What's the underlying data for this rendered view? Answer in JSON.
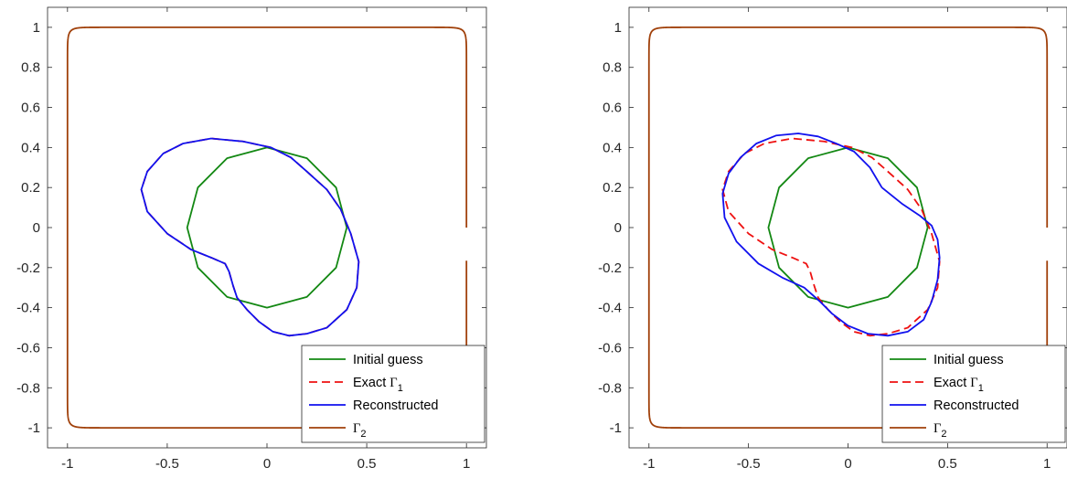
{
  "chart_data": [
    {
      "type": "line",
      "panel": "left",
      "xlim": [
        -1.1,
        1.1
      ],
      "ylim": [
        -1.1,
        1.1
      ],
      "x_ticks": [
        -1,
        -0.5,
        0,
        0.5,
        1
      ],
      "x_tick_labels": [
        "-1",
        "-0.5",
        "0",
        "0.5",
        "1"
      ],
      "y_ticks": [
        1,
        0.8,
        0.6,
        0.4,
        0.2,
        0,
        -0.2,
        -0.4,
        -0.6,
        -0.8,
        -1
      ],
      "y_tick_labels": [
        "1",
        "0.8",
        "0.6",
        "0.4",
        "0.2",
        "0",
        "-0.2",
        "-0.4",
        "-0.6",
        "-0.8",
        "-1"
      ],
      "grid": false,
      "legend_position": "bottom-right",
      "legend": [
        {
          "label": "Initial guess",
          "sub": ""
        },
        {
          "label": "Exact Γ",
          "sub": "1"
        },
        {
          "label": "Reconstructed",
          "sub": ""
        },
        {
          "label": "Γ",
          "sub": "2"
        }
      ],
      "series": [
        {
          "label_index": 0,
          "color": "#138813",
          "dash": "solid",
          "x": [
            0.4,
            0.3464,
            0.2,
            0,
            -0.2,
            -0.3464,
            -0.4,
            -0.3464,
            -0.2,
            0,
            0.2,
            0.3464,
            0.4
          ],
          "y": [
            0,
            0.2,
            0.3464,
            0.4,
            0.3464,
            0.2,
            0,
            -0.2,
            -0.3464,
            -0.4,
            -0.3464,
            -0.2,
            0
          ]
        },
        {
          "label_index": 1,
          "color": "#ee1111",
          "dash": "dashed",
          "x": [
            0.2,
            0.3,
            0.37,
            0.42,
            0.46,
            0.45,
            0.4,
            0.3,
            0.2,
            0.11,
            0.03,
            -0.04,
            -0.1,
            -0.15,
            -0.17,
            -0.19,
            -0.21,
            -0.28,
            -0.38,
            -0.5,
            -0.6,
            -0.63,
            -0.6,
            -0.52,
            -0.42,
            -0.28,
            -0.12,
            0.02,
            0.12,
            0.2
          ],
          "y": [
            0.28,
            0.19,
            0.09,
            -0.03,
            -0.17,
            -0.3,
            -0.41,
            -0.5,
            -0.53,
            -0.54,
            -0.52,
            -0.47,
            -0.41,
            -0.35,
            -0.29,
            -0.22,
            -0.18,
            -0.15,
            -0.11,
            -0.03,
            0.08,
            0.19,
            0.28,
            0.37,
            0.42,
            0.445,
            0.43,
            0.4,
            0.35,
            0.28
          ]
        },
        {
          "label_index": 2,
          "color": "#1111ee",
          "dash": "solid",
          "x": [
            0.2,
            0.3,
            0.37,
            0.42,
            0.46,
            0.45,
            0.4,
            0.3,
            0.2,
            0.11,
            0.03,
            -0.04,
            -0.1,
            -0.15,
            -0.17,
            -0.19,
            -0.21,
            -0.28,
            -0.38,
            -0.5,
            -0.6,
            -0.63,
            -0.6,
            -0.52,
            -0.42,
            -0.28,
            -0.12,
            0.02,
            0.12,
            0.2
          ],
          "y": [
            0.28,
            0.19,
            0.09,
            -0.03,
            -0.17,
            -0.3,
            -0.41,
            -0.5,
            -0.53,
            -0.54,
            -0.52,
            -0.47,
            -0.41,
            -0.35,
            -0.29,
            -0.22,
            -0.18,
            -0.15,
            -0.11,
            -0.03,
            0.08,
            0.19,
            0.28,
            0.37,
            0.42,
            0.445,
            0.43,
            0.4,
            0.35,
            0.28
          ]
        },
        {
          "label_index": 3,
          "color": "#a0400a",
          "dash": "solid",
          "superellipse": {
            "a": 1,
            "n": 40
          }
        }
      ]
    },
    {
      "type": "line",
      "panel": "right",
      "xlim": [
        -1.1,
        1.1
      ],
      "ylim": [
        -1.1,
        1.1
      ],
      "x_ticks": [
        -1,
        -0.5,
        0,
        0.5,
        1
      ],
      "x_tick_labels": [
        "-1",
        "-0.5",
        "0",
        "0.5",
        "1"
      ],
      "y_ticks": [
        1,
        0.8,
        0.6,
        0.4,
        0.2,
        0,
        -0.2,
        -0.4,
        -0.6,
        -0.8,
        -1
      ],
      "y_tick_labels": [
        "1",
        "0.8",
        "0.6",
        "0.4",
        "0.2",
        "0",
        "-0.2",
        "-0.4",
        "-0.6",
        "-0.8",
        "-1"
      ],
      "grid": false,
      "legend_position": "bottom-right",
      "legend": [
        {
          "label": "Initial guess",
          "sub": ""
        },
        {
          "label": "Exact Γ",
          "sub": "1"
        },
        {
          "label": "Reconstructed",
          "sub": ""
        },
        {
          "label": "Γ",
          "sub": "2"
        }
      ],
      "series": [
        {
          "label_index": 0,
          "color": "#138813",
          "dash": "solid",
          "x": [
            0.4,
            0.3464,
            0.2,
            0,
            -0.2,
            -0.3464,
            -0.4,
            -0.3464,
            -0.2,
            0,
            0.2,
            0.3464,
            0.4
          ],
          "y": [
            0,
            0.2,
            0.3464,
            0.4,
            0.3464,
            0.2,
            0,
            -0.2,
            -0.3464,
            -0.4,
            -0.3464,
            -0.2,
            0
          ]
        },
        {
          "label_index": 1,
          "color": "#ee1111",
          "dash": "dashed",
          "x": [
            0.2,
            0.3,
            0.37,
            0.42,
            0.46,
            0.45,
            0.4,
            0.3,
            0.2,
            0.11,
            0.03,
            -0.04,
            -0.1,
            -0.15,
            -0.17,
            -0.19,
            -0.21,
            -0.28,
            -0.38,
            -0.5,
            -0.6,
            -0.63,
            -0.6,
            -0.52,
            -0.42,
            -0.28,
            -0.12,
            0.02,
            0.12,
            0.2
          ],
          "y": [
            0.28,
            0.19,
            0.09,
            -0.03,
            -0.17,
            -0.3,
            -0.41,
            -0.5,
            -0.53,
            -0.54,
            -0.52,
            -0.47,
            -0.41,
            -0.35,
            -0.29,
            -0.22,
            -0.18,
            -0.15,
            -0.11,
            -0.03,
            0.08,
            0.19,
            0.28,
            0.37,
            0.42,
            0.445,
            0.43,
            0.4,
            0.35,
            0.28
          ]
        },
        {
          "label_index": 2,
          "color": "#1111ee",
          "dash": "solid",
          "x": [
            0.17,
            0.27,
            0.36,
            0.42,
            0.45,
            0.46,
            0.45,
            0.42,
            0.38,
            0.3,
            0.2,
            0.1,
            0.0,
            -0.08,
            -0.14,
            -0.22,
            -0.33,
            -0.45,
            -0.56,
            -0.62,
            -0.63,
            -0.6,
            -0.54,
            -0.46,
            -0.36,
            -0.25,
            -0.15,
            -0.06,
            0.03,
            0.11,
            0.17
          ],
          "y": [
            0.2,
            0.12,
            0.06,
            0.01,
            -0.06,
            -0.15,
            -0.26,
            -0.37,
            -0.46,
            -0.52,
            -0.54,
            -0.53,
            -0.49,
            -0.43,
            -0.37,
            -0.3,
            -0.25,
            -0.18,
            -0.07,
            0.05,
            0.17,
            0.27,
            0.35,
            0.42,
            0.46,
            0.47,
            0.455,
            0.42,
            0.38,
            0.3,
            0.2
          ]
        },
        {
          "label_index": 3,
          "color": "#a0400a",
          "dash": "solid",
          "superellipse": {
            "a": 1,
            "n": 40
          }
        }
      ]
    }
  ]
}
